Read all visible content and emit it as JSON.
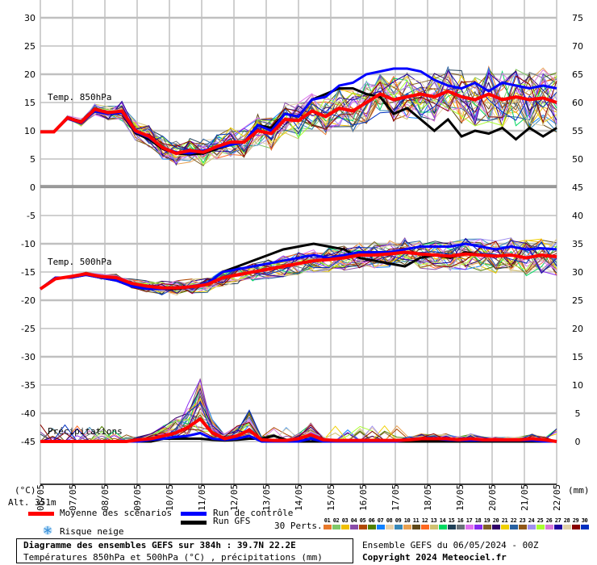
{
  "chart_data": {
    "type": "line",
    "title": "Diagramme des ensembles GEFS sur 384h : 39.7N 22.2E",
    "subtitle": "Températures 850hPa et 500hPa (°C) , précipitations (mm)",
    "run_info": "Ensemble GEFS du 06/05/2024 - 00Z",
    "copyright": "Copyright 2024 Meteociel.fr",
    "altitude_label": "Alt. 351m",
    "xlabel_units_left": "(°C)",
    "xlabel_units_right": "(mm)",
    "x_dates": [
      "06/05",
      "07/05",
      "08/05",
      "09/05",
      "10/05",
      "11/05",
      "12/05",
      "13/05",
      "14/05",
      "15/05",
      "16/05",
      "17/05",
      "18/05",
      "19/05",
      "20/05",
      "21/05",
      "22/05"
    ],
    "left_axis": {
      "ticks": [
        30,
        25,
        20,
        15,
        10,
        5,
        0,
        -5,
        -10,
        -15,
        -20,
        -25,
        -30,
        -35,
        -40,
        -45
      ],
      "unit": "°C"
    },
    "right_axis": {
      "ticks": [
        75,
        70,
        65,
        60,
        55,
        50,
        45,
        40,
        35,
        30,
        25,
        20,
        15,
        10,
        5,
        0
      ],
      "note": "right ticks 45-75 map to 850hPa band offset; 0-20 = precipitation mm"
    },
    "bands": [
      {
        "name": "Temp. 850hPa",
        "ylim": [
          0,
          30
        ]
      },
      {
        "name": "Temp. 500hPa",
        "ylim": [
          -25,
          -5
        ]
      },
      {
        "name": "Précipitations",
        "ylim_mm": [
          0,
          20
        ]
      }
    ],
    "x_step_hours": 12,
    "series": [
      {
        "name": "Moyenne des scénarios",
        "color": "#ff0000",
        "t850": [
          9.8,
          9.8,
          12.3,
          11.5,
          13.8,
          13.2,
          13.5,
          10,
          9,
          7,
          6,
          6.5,
          6.2,
          7.2,
          8,
          8,
          10,
          9.5,
          12,
          11.8,
          13.5,
          12.5,
          14,
          13.5,
          15,
          16.5,
          15.5,
          16,
          16.5,
          16,
          17,
          16,
          15.5,
          16.5,
          15.5,
          16,
          15.5,
          15.8,
          15
        ],
        "t500": [
          -18,
          -16.2,
          -15.8,
          -15.3,
          -15.8,
          -16,
          -17,
          -17.5,
          -17.8,
          -17.8,
          -17.6,
          -17.2,
          -16,
          -15.5,
          -15,
          -14.5,
          -14,
          -13.5,
          -13,
          -12.8,
          -12.5,
          -12,
          -12,
          -11.8,
          -11.5,
          -11.8,
          -12,
          -12.2,
          -11.8,
          -12,
          -12.2,
          -12,
          -12.5,
          -12,
          -12.3
        ],
        "precip": [
          0,
          0,
          0,
          0,
          0,
          0,
          0,
          0,
          0.3,
          0.5,
          1,
          1.5,
          2.5,
          4,
          1.5,
          0.5,
          1,
          2,
          0.3,
          0.2,
          0.2,
          0.5,
          1.2,
          0.3,
          0.2,
          0.2,
          0.2,
          0.2,
          0.2,
          0.2,
          0.3,
          0.5,
          0.5,
          0.5,
          0.3,
          0.5,
          0.3,
          0.3,
          0.3,
          0.3,
          0.5,
          0.3,
          0
        ]
      },
      {
        "name": "Run de contrôle",
        "color": "#0000ff",
        "t850": [
          9.8,
          9.8,
          12.2,
          11.3,
          13.5,
          13,
          13.2,
          9.8,
          8.8,
          7,
          6.2,
          6,
          6.5,
          7,
          7.5,
          8,
          11,
          10,
          13,
          12.5,
          15.5,
          16,
          18,
          18.5,
          20,
          20.5,
          21,
          21,
          20.5,
          19,
          18,
          17.5,
          18.5,
          17,
          18.5,
          18,
          17.5,
          18,
          17.5
        ],
        "t500": [
          -18,
          -16,
          -16,
          -15.5,
          -16,
          -16.5,
          -17.5,
          -18,
          -18,
          -17.8,
          -17.5,
          -17,
          -15,
          -14.5,
          -14,
          -13.5,
          -13,
          -12.5,
          -12,
          -12.5,
          -12,
          -11.5,
          -11.5,
          -11.5,
          -11,
          -10.5,
          -10.5,
          -10.5,
          -10,
          -10.5,
          -11,
          -10.5,
          -11,
          -10.8,
          -11
        ],
        "precip": [
          0,
          0,
          0,
          0,
          0,
          0,
          0,
          0,
          0,
          0.3,
          0.5,
          0.8,
          1,
          1.5,
          0.5,
          0.3,
          0.5,
          1,
          0,
          0,
          0,
          0,
          0.5,
          0,
          0,
          0,
          0,
          0,
          0,
          0,
          0.3,
          0.5,
          0.5,
          0.3,
          0.2,
          0.2,
          0.2,
          0.2,
          0.2,
          0.2,
          0.2,
          0,
          0
        ]
      },
      {
        "name": "Run GFS",
        "color": "#000000",
        "t850": [
          9.8,
          9.8,
          12.2,
          11.3,
          13.5,
          13,
          13.2,
          9.6,
          8.5,
          6.8,
          6,
          5.8,
          6,
          6.8,
          7.5,
          8,
          11,
          10.5,
          13,
          12.5,
          15.5,
          16.5,
          17.5,
          17.5,
          16.5,
          16,
          13,
          14,
          12,
          10,
          12,
          9,
          10,
          9.5,
          10.5,
          8.5,
          10.5,
          9,
          10.5
        ],
        "t500": [
          -18,
          -16,
          -16,
          -15.5,
          -16,
          -16.5,
          -17.5,
          -18,
          -18,
          -18,
          -17.6,
          -17,
          -15,
          -14,
          -13,
          -12,
          -11,
          -10.5,
          -10,
          -10.5,
          -11,
          -12.5,
          -13,
          -13.5,
          -14,
          -12.5,
          -12,
          -12.5,
          -11.5,
          -12,
          -12.2,
          -12,
          -12.5,
          -12,
          -12.3
        ],
        "precip": [
          0,
          0,
          0,
          0,
          0,
          0,
          0,
          0,
          0,
          0,
          0.5,
          0.5,
          0.5,
          0.5,
          0.3,
          0.2,
          0.3,
          0.5,
          0.5,
          1,
          0.3,
          0,
          0,
          0,
          0,
          0,
          0,
          0,
          0,
          0,
          0,
          0,
          0,
          0,
          0,
          0,
          0,
          0,
          0,
          0,
          0,
          0,
          0
        ]
      }
    ],
    "perturbations": {
      "count_label": "30 Perts.",
      "members": [
        {
          "id": "01",
          "color": "#e8792b"
        },
        {
          "id": "02",
          "color": "#80c868"
        },
        {
          "id": "03",
          "color": "#f0c000"
        },
        {
          "id": "04",
          "color": "#8a4ca8"
        },
        {
          "id": "05",
          "color": "#b04800"
        },
        {
          "id": "06",
          "color": "#508000"
        },
        {
          "id": "07",
          "color": "#1080ff"
        },
        {
          "id": "08",
          "color": "#e8d0a8"
        },
        {
          "id": "09",
          "color": "#3888b8"
        },
        {
          "id": "10",
          "color": "#e8a050"
        },
        {
          "id": "11",
          "color": "#604818"
        },
        {
          "id": "12",
          "color": "#ff6820"
        },
        {
          "id": "13",
          "color": "#d0c070"
        },
        {
          "id": "14",
          "color": "#00d860"
        },
        {
          "id": "15",
          "color": "#204058"
        },
        {
          "id": "16",
          "color": "#687078"
        },
        {
          "id": "17",
          "color": "#e070f0"
        },
        {
          "id": "18",
          "color": "#8828f0"
        },
        {
          "id": "19",
          "color": "#806028"
        },
        {
          "id": "20",
          "color": "#300068"
        },
        {
          "id": "21",
          "color": "#f0d000"
        },
        {
          "id": "22",
          "color": "#2860a0"
        },
        {
          "id": "23",
          "color": "#905818"
        },
        {
          "id": "24",
          "color": "#a090f0"
        },
        {
          "id": "25",
          "color": "#a8ff30"
        },
        {
          "id": "26",
          "color": "#d878d8"
        },
        {
          "id": "27",
          "color": "#2000a0"
        },
        {
          "id": "28",
          "color": "#e0d0a8"
        },
        {
          "id": "29",
          "color": "#880000"
        },
        {
          "id": "30",
          "color": "#0030c0"
        }
      ]
    },
    "grid": true,
    "legend_position": "bottom"
  },
  "labels": {
    "band_850": "Temp. 850hPa",
    "band_500": "Temp. 500hPa",
    "band_precip": "Précipitations",
    "unit_left": "(°C)",
    "unit_right": "(mm)",
    "altitude": "Alt. 351m"
  },
  "legend": {
    "mean": "Moyenne des scénarios",
    "control": "Run de contrôle",
    "gfs": "Run GFS",
    "snow": "Risque neige",
    "perts": "30 Perts.",
    "mean_color": "#ff0000",
    "control_color": "#0000ff",
    "gfs_color": "#000000"
  },
  "footer": {
    "title": "Diagramme des ensembles GEFS sur 384h : 39.7N 22.2E",
    "subtitle": "Températures 850hPa et 500hPa (°C) , précipitations (mm)",
    "run_info": "Ensemble GEFS du 06/05/2024 - 00Z",
    "copyright": "Copyright 2024 Meteociel.fr"
  }
}
